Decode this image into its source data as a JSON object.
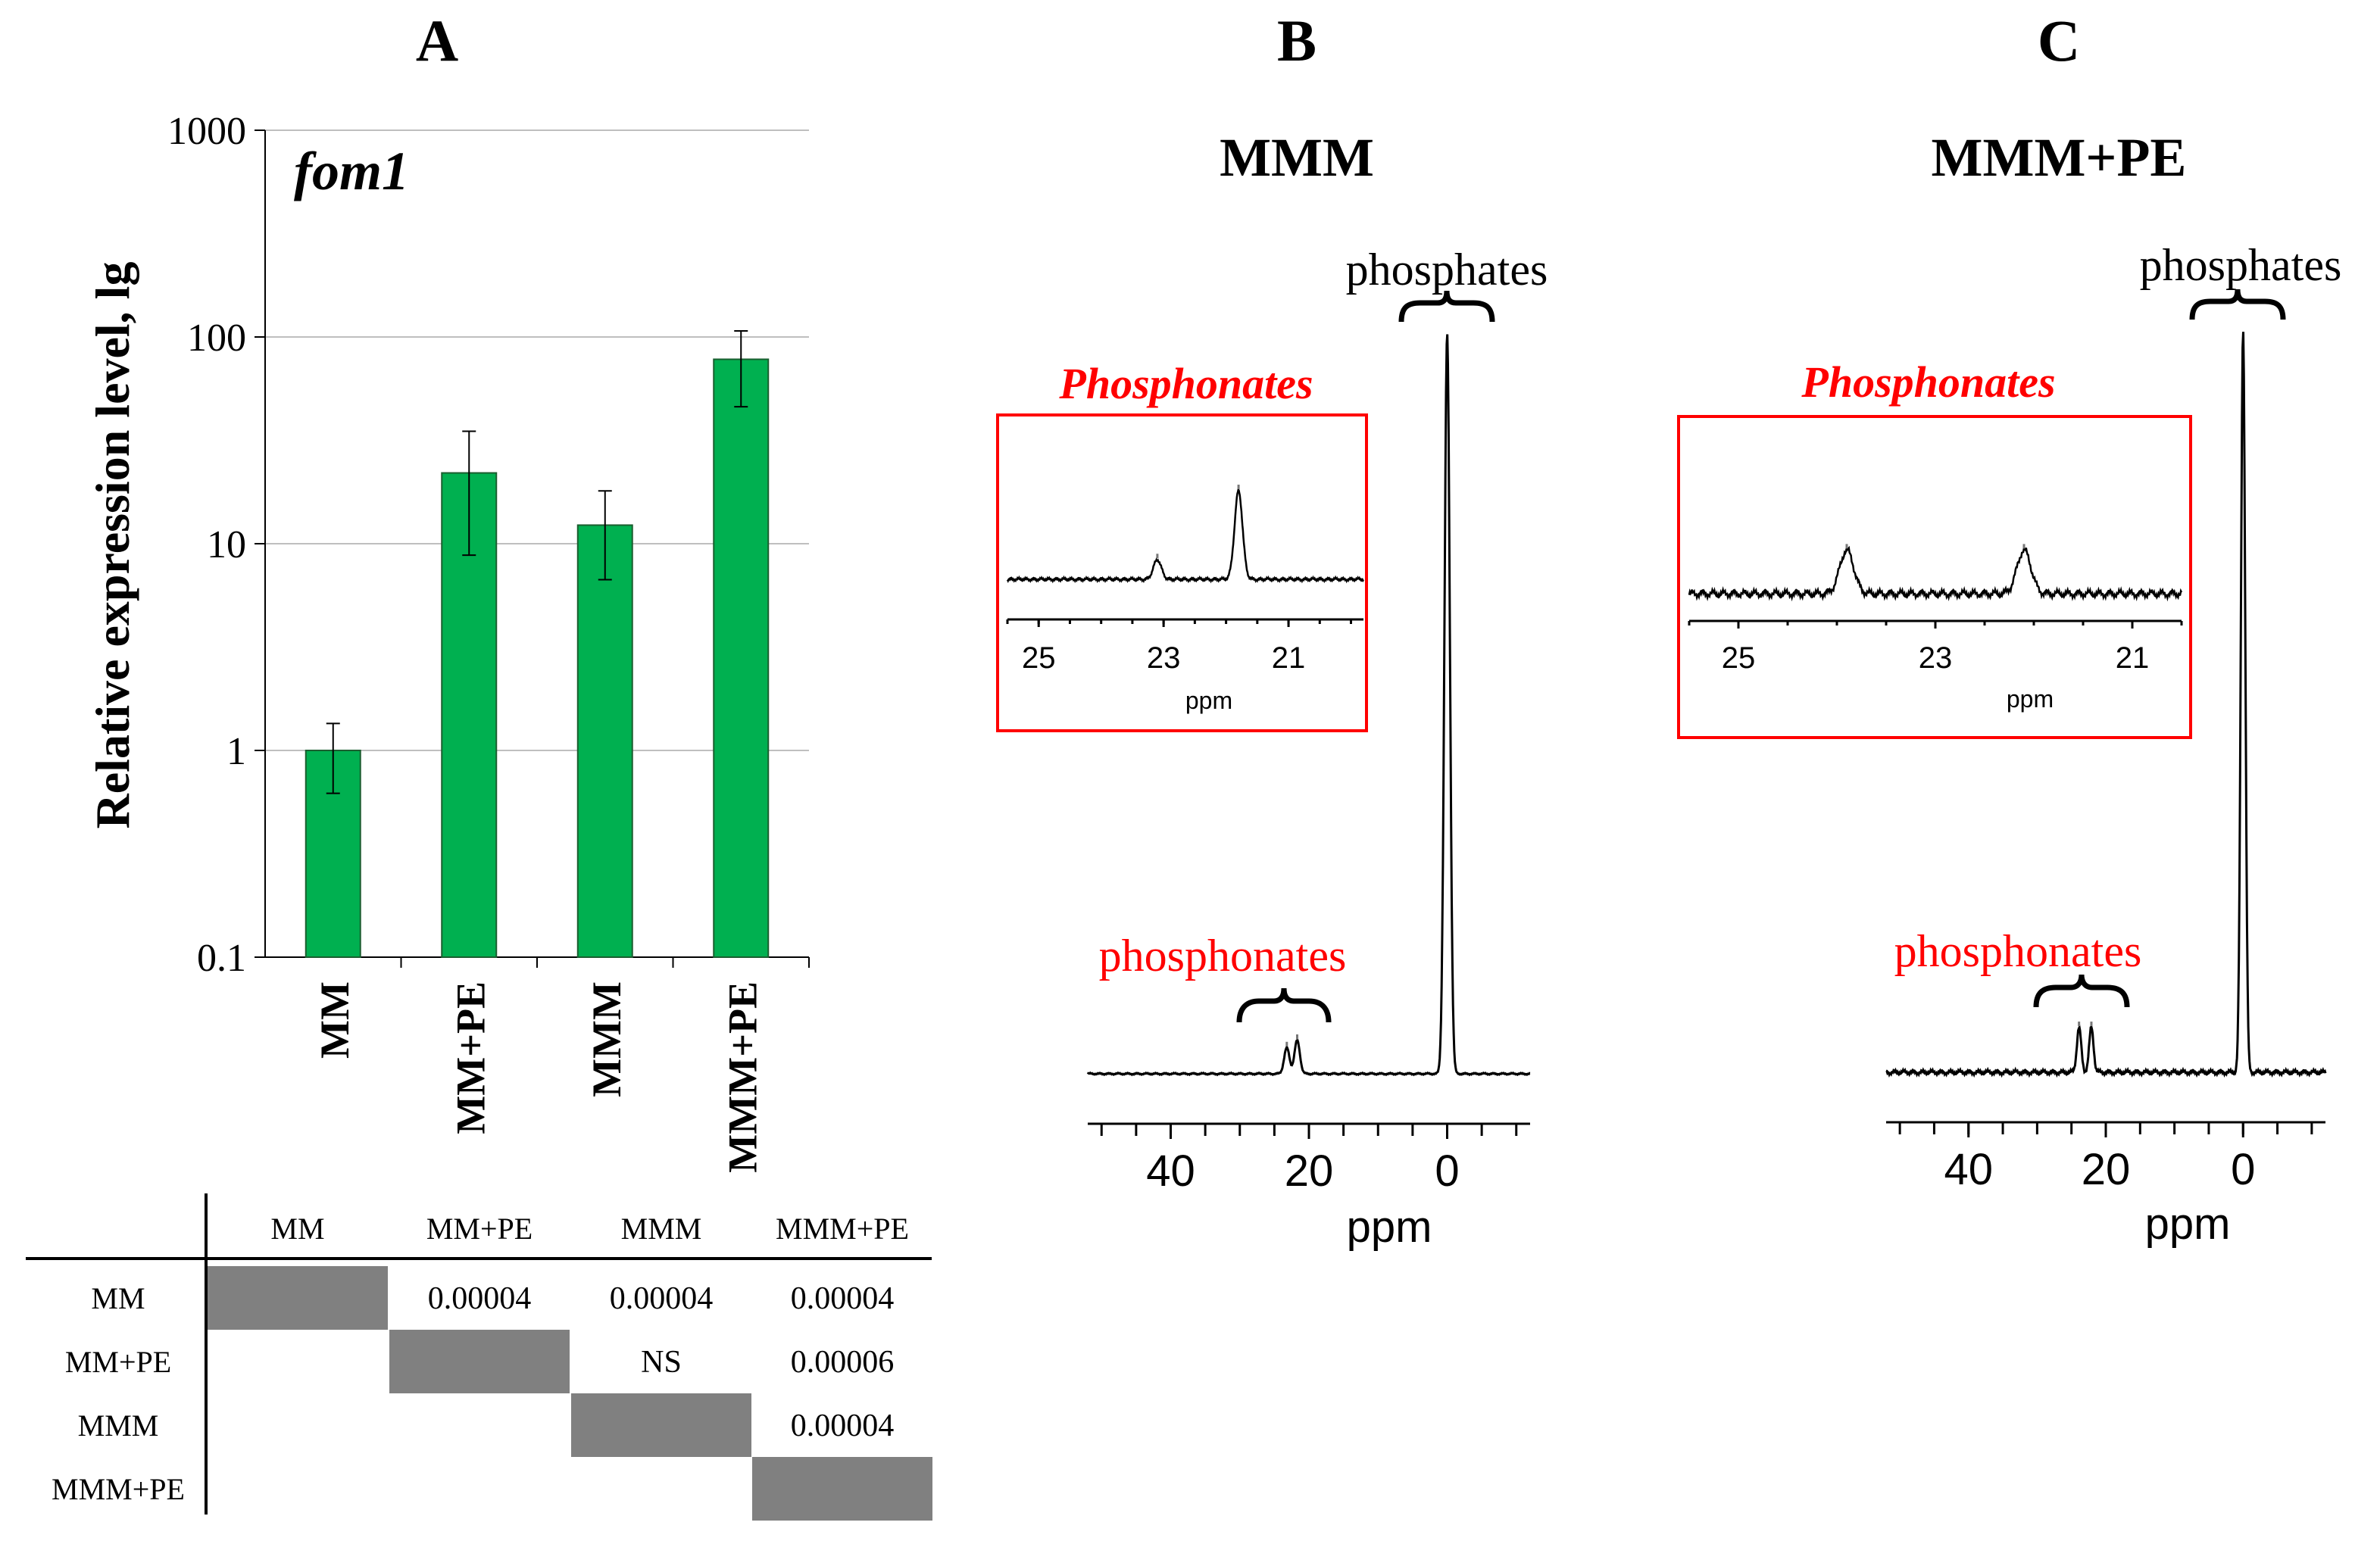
{
  "panel_labels": {
    "a": "A",
    "b": "B",
    "c": "C"
  },
  "chart_data": [
    {
      "type": "bar",
      "panel": "A",
      "title": "fom1",
      "xlabel": "",
      "ylabel": "Relative expression level, lg",
      "yscale": "log",
      "ylim": [
        0.1,
        1000
      ],
      "yticks": [
        "0.1",
        "1",
        "10",
        "100",
        "1000"
      ],
      "categories": [
        "MM",
        "MM+PE",
        "MMM",
        "MMM+PE"
      ],
      "values": [
        1.0,
        22,
        12.3,
        78
      ],
      "error_low": [
        0.62,
        8.8,
        6.7,
        46
      ],
      "error_high": [
        1.35,
        35,
        18,
        107
      ],
      "bar_color": "#00b050",
      "grid": true
    },
    {
      "type": "line",
      "panel": "B",
      "title": "MMM",
      "xlabel": "ppm",
      "xlim": [
        52,
        -12
      ],
      "xticks": [
        "40",
        "20",
        "0"
      ],
      "peaks": [
        {
          "ppm": 0,
          "height": 1.0
        },
        {
          "ppm": 23.2,
          "height": 0.035
        },
        {
          "ppm": 21.7,
          "height": 0.045
        }
      ],
      "annotations": {
        "major": "phosphates",
        "minor": "phosphonates"
      },
      "inset": {
        "title": "Phosphonates",
        "xlabel": "ppm",
        "xlim": [
          25.5,
          19.8
        ],
        "xticks": [
          "25",
          "23",
          "21"
        ],
        "peaks": [
          {
            "ppm": 23.1,
            "height": 0.22
          },
          {
            "ppm": 21.8,
            "height": 1.0
          }
        ]
      }
    },
    {
      "type": "line",
      "panel": "C",
      "title": "MMM+PE",
      "xlabel": "ppm",
      "xlim": [
        52,
        -12
      ],
      "xticks": [
        "40",
        "20",
        "0"
      ],
      "peaks": [
        {
          "ppm": 0,
          "height": 1.0
        },
        {
          "ppm": 23.9,
          "height": 0.06
        },
        {
          "ppm": 22.1,
          "height": 0.06
        }
      ],
      "annotations": {
        "major": "phosphates",
        "minor": "phosphonates"
      },
      "inset": {
        "title": "Phosphonates",
        "xlabel": "ppm",
        "xlim": [
          25.5,
          20.5
        ],
        "xticks": [
          "25",
          "23",
          "21"
        ],
        "peaks": [
          {
            "ppm": 23.9,
            "height": 0.8
          },
          {
            "ppm": 22.1,
            "height": 0.8
          }
        ]
      }
    }
  ],
  "pvalue_table": {
    "columns": [
      "MM",
      "MM+PE",
      "MMM",
      "MMM+PE"
    ],
    "rows": [
      {
        "label": "MM",
        "cells": [
          "",
          "0.00004",
          "0.00004",
          "0.00004"
        ]
      },
      {
        "label": "MM+PE",
        "cells": [
          "",
          "",
          "NS",
          "0.00006"
        ]
      },
      {
        "label": "MMM",
        "cells": [
          "",
          "",
          "",
          "0.00004"
        ]
      },
      {
        "label": "MMM+PE",
        "cells": [
          "",
          "",
          "",
          ""
        ]
      }
    ],
    "diagonal_color": "#808080"
  },
  "colors": {
    "highlight": "#ff0000",
    "bar": "#00b050",
    "axis": "#000000",
    "grid": "#bfbfbf"
  }
}
